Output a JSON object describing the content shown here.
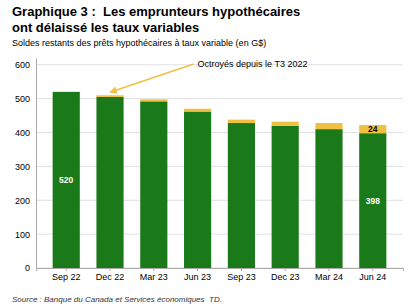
{
  "chart_data": {
    "type": "bar",
    "stacked": true,
    "title": [
      "Graphique 3 :  Les emprunteurs hypothécaires",
      "ont délaissé les taux variables"
    ],
    "subtitle": "Soldes restants des prêts hypothécaires à taux variable (en G$)",
    "source": "Source : Banque du Canada et Services économiques  TD.",
    "annotations": [
      "Octroyés depuis le T3 2022"
    ],
    "categories": [
      "Sep 22",
      "Dec 22",
      "Mar 23",
      "Jun 23",
      "Sep 23",
      "Dec 23",
      "Mar 24",
      "Jun 24"
    ],
    "series": [
      {
        "color": "#1a7a1a",
        "values": [
          520,
          505,
          492,
          462,
          428,
          420,
          410,
          398
        ],
        "value_labels": [
          "520",
          null,
          null,
          null,
          null,
          null,
          null,
          "398"
        ]
      },
      {
        "color": "#f0c040",
        "values": [
          0,
          5,
          6,
          8,
          10,
          12,
          18,
          24
        ],
        "value_labels": [
          null,
          null,
          null,
          null,
          null,
          null,
          null,
          "24"
        ]
      }
    ],
    "ylim": [
      0,
      620
    ],
    "yticks": [
      0,
      100,
      200,
      300,
      400,
      500,
      600
    ],
    "grid": true
  }
}
